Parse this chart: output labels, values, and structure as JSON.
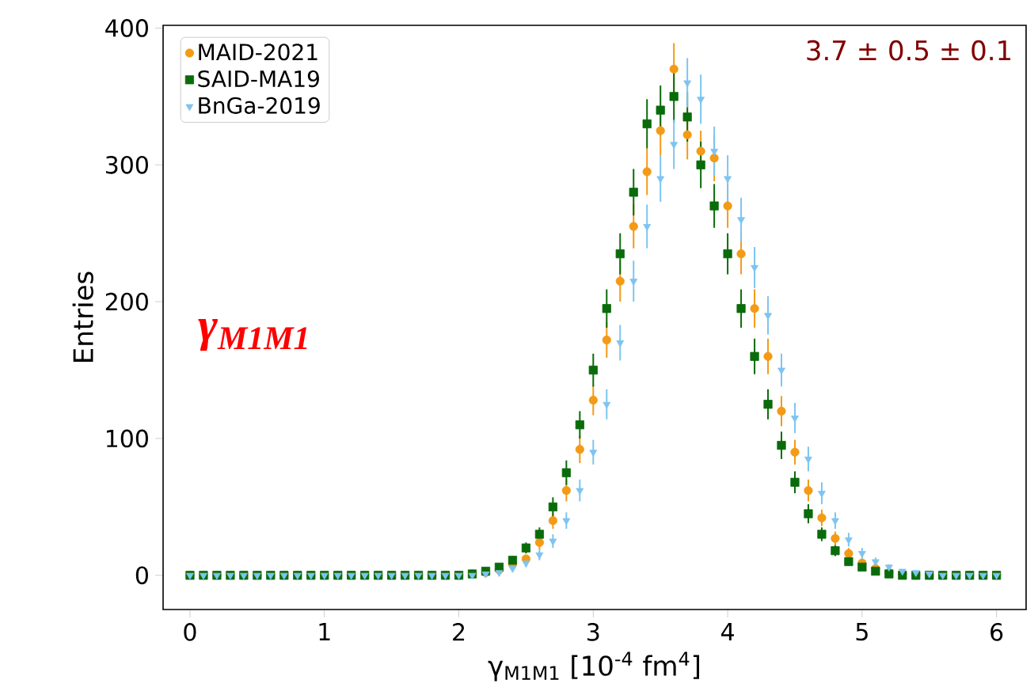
{
  "chart_data": {
    "type": "scatter",
    "xlabel": "γ$_{M1M1}$ [10$^{-4}$ fm$^{4}$]",
    "ylabel": "Entries",
    "annotations": [
      "3.7 ± 0.5 ± 0.1",
      "γ$_{M1M1}$"
    ],
    "xlim": [
      -0.2,
      6.22
    ],
    "ylim": [
      -25,
      402
    ],
    "xticks": [
      0,
      1,
      2,
      3,
      4,
      5,
      6
    ],
    "yticks": [
      0,
      100,
      200,
      300,
      400
    ],
    "legend": "top left",
    "grid": false,
    "x": [
      0,
      0.1,
      0.2,
      0.3,
      0.4,
      0.5,
      0.6,
      0.7,
      0.8,
      0.9,
      1.0,
      1.1,
      1.2,
      1.3,
      1.4,
      1.5,
      1.6,
      1.7,
      1.8,
      1.9,
      2.0,
      2.1,
      2.2,
      2.3,
      2.4,
      2.5,
      2.6,
      2.7,
      2.8,
      2.9,
      3.0,
      3.1,
      3.2,
      3.3,
      3.4,
      3.5,
      3.6,
      3.7,
      3.8,
      3.9,
      4.0,
      4.1,
      4.2,
      4.3,
      4.4,
      4.5,
      4.6,
      4.7,
      4.8,
      4.9,
      5.0,
      5.1,
      5.2,
      5.3,
      5.4,
      5.5,
      5.6,
      5.7,
      5.8,
      5.9,
      6.0
    ],
    "series": [
      {
        "name": "MAID-2021",
        "color": "#f39a16",
        "marker": "circle",
        "values": [
          0,
          0,
          0,
          0,
          0,
          0,
          0,
          0,
          0,
          0,
          0,
          0,
          0,
          0,
          0,
          0,
          0,
          0,
          0,
          0,
          0,
          1,
          2,
          4,
          8,
          12,
          24,
          40,
          62,
          92,
          128,
          172,
          215,
          255,
          295,
          325,
          370,
          322,
          310,
          305,
          270,
          235,
          195,
          160,
          120,
          90,
          62,
          42,
          27,
          16,
          9,
          5,
          2,
          1,
          0,
          0,
          0,
          0,
          0,
          0,
          0
        ],
        "errors": [
          1,
          1,
          1,
          1,
          1,
          1,
          1,
          1,
          1,
          1,
          1,
          1,
          1,
          1,
          1,
          1,
          1,
          1,
          1,
          1,
          1,
          1,
          1,
          2,
          3,
          3,
          5,
          6,
          8,
          10,
          11,
          13,
          15,
          16,
          17,
          18,
          19,
          18,
          15,
          17,
          16,
          15,
          14,
          13,
          11,
          9,
          8,
          6,
          5,
          4,
          3,
          2,
          1,
          1,
          1,
          1,
          1,
          1,
          1,
          1,
          1
        ]
      },
      {
        "name": "SAID-MA19",
        "color": "#0a6b0a",
        "marker": "square",
        "values": [
          0,
          0,
          0,
          0,
          0,
          0,
          0,
          0,
          0,
          0,
          0,
          0,
          0,
          0,
          0,
          0,
          0,
          0,
          0,
          0,
          0,
          1,
          3,
          6,
          11,
          20,
          30,
          50,
          75,
          110,
          150,
          195,
          235,
          280,
          330,
          340,
          350,
          335,
          300,
          270,
          235,
          195,
          160,
          125,
          95,
          68,
          45,
          30,
          18,
          10,
          6,
          3,
          1,
          0,
          0,
          0,
          0,
          0,
          0,
          0,
          0
        ],
        "errors": [
          1,
          1,
          1,
          1,
          1,
          1,
          1,
          1,
          1,
          1,
          1,
          1,
          1,
          1,
          1,
          1,
          1,
          1,
          1,
          1,
          1,
          1,
          2,
          2,
          3,
          4,
          5,
          7,
          9,
          10,
          12,
          14,
          15,
          17,
          18,
          18,
          19,
          18,
          17,
          16,
          15,
          14,
          13,
          11,
          10,
          8,
          7,
          5,
          4,
          3,
          2,
          2,
          1,
          1,
          1,
          1,
          1,
          1,
          1,
          1,
          1
        ]
      },
      {
        "name": "BnGa-2019",
        "color": "#7ec4f0",
        "marker": "triangle",
        "values": [
          0,
          0,
          0,
          0,
          0,
          0,
          0,
          0,
          0,
          0,
          0,
          0,
          0,
          0,
          0,
          0,
          0,
          0,
          0,
          0,
          0,
          0,
          1,
          2,
          5,
          9,
          15,
          25,
          40,
          62,
          90,
          125,
          170,
          215,
          255,
          290,
          315,
          360,
          348,
          310,
          290,
          260,
          225,
          190,
          150,
          115,
          85,
          60,
          40,
          26,
          16,
          10,
          6,
          3,
          2,
          1,
          0,
          0,
          0,
          0,
          0
        ],
        "errors": [
          1,
          1,
          1,
          1,
          1,
          1,
          1,
          1,
          1,
          1,
          1,
          1,
          1,
          1,
          1,
          1,
          1,
          1,
          1,
          1,
          1,
          1,
          1,
          1,
          2,
          3,
          4,
          5,
          6,
          8,
          9,
          11,
          13,
          15,
          16,
          17,
          18,
          18,
          18,
          18,
          17,
          16,
          15,
          14,
          12,
          11,
          9,
          8,
          6,
          5,
          4,
          3,
          2,
          null,
          1,
          1,
          1,
          1,
          1,
          1,
          1
        ]
      }
    ]
  }
}
